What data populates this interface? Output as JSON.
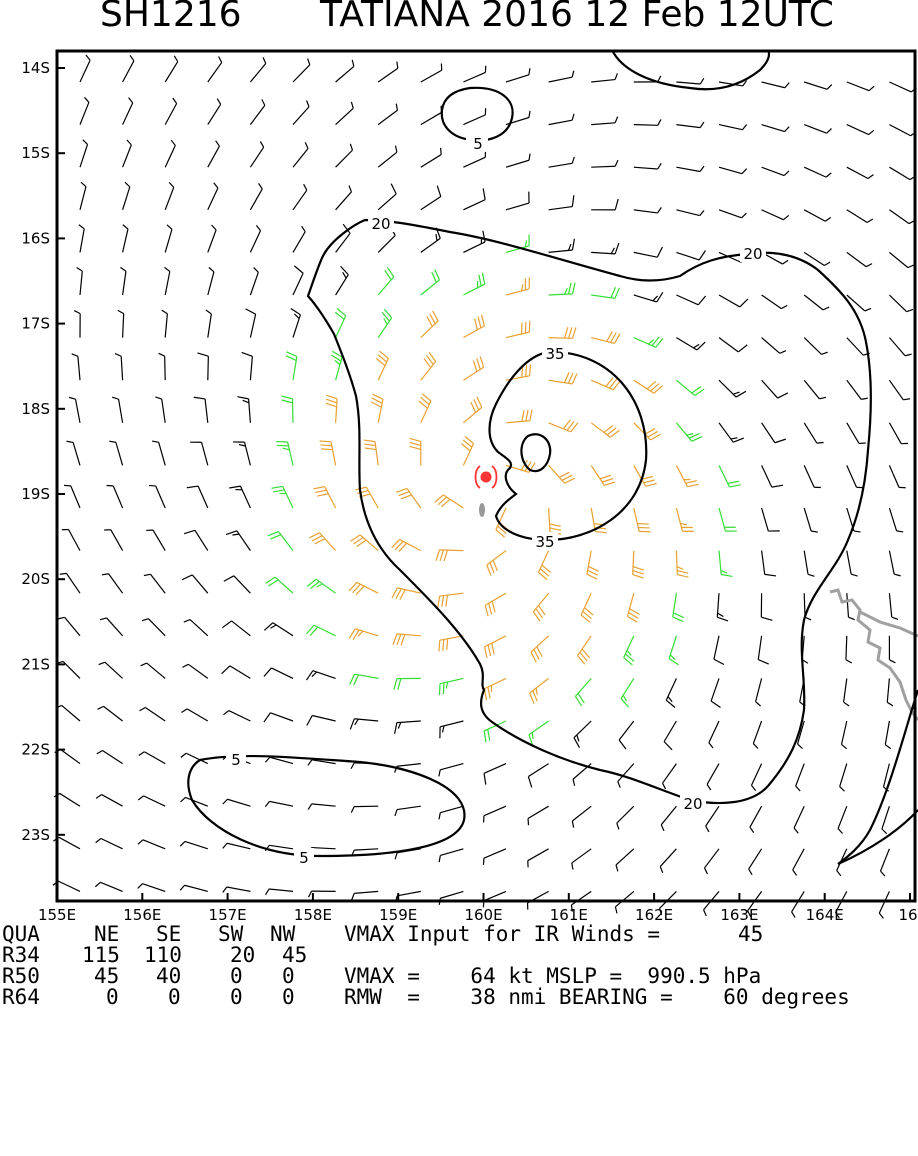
{
  "title": {
    "storm_id": "SH1216",
    "storm_info": "TATIANA 2016 12 Feb 12UTC"
  },
  "map": {
    "lon_labels": [
      "155E",
      "156E",
      "157E",
      "158E",
      "159E",
      "160E",
      "161E",
      "162E",
      "163E",
      "164E",
      "16"
    ],
    "lat_labels": [
      "14S",
      "15S",
      "16S",
      "17S",
      "18S",
      "19S",
      "20S",
      "21S",
      "22S",
      "23S"
    ],
    "contour_labels": {
      "c5_top": "5",
      "c20_nw": "20",
      "c20_ne": "20",
      "c35_n": "35",
      "c35_s": "35",
      "c5_bottom_w": "5",
      "c5_bottom_s": "5",
      "c20_se": "20"
    },
    "colors": {
      "barb_low": "#000000",
      "barb_34kt": "#33dd33",
      "barb_50kt": "#e8a030",
      "center": "#ff3333",
      "coastline": "#a0a0a0"
    },
    "center_lon": 160.05,
    "center_lat": -18.95
  },
  "stats_table": {
    "header": {
      "label": "QUA",
      "ne": "NE",
      "se": "SE",
      "sw": "SW",
      "nw": "NW",
      "note": "VMAX Input for IR Winds =",
      "note_value": "45"
    },
    "rows": [
      {
        "label": "R34",
        "ne": "115",
        "se": "110",
        "sw": "20",
        "nw": "45"
      },
      {
        "label": "R50",
        "ne": "45",
        "se": "40",
        "sw": "0",
        "nw": "0"
      },
      {
        "label": "R64",
        "ne": "0",
        "se": "0",
        "sw": "0",
        "nw": "0"
      }
    ],
    "vmax_line": "VMAX =    64 kt MSLP =  990.5 hPa",
    "rmw_line": "RMW  =    38 nmi BEARING =    60 degrees"
  }
}
